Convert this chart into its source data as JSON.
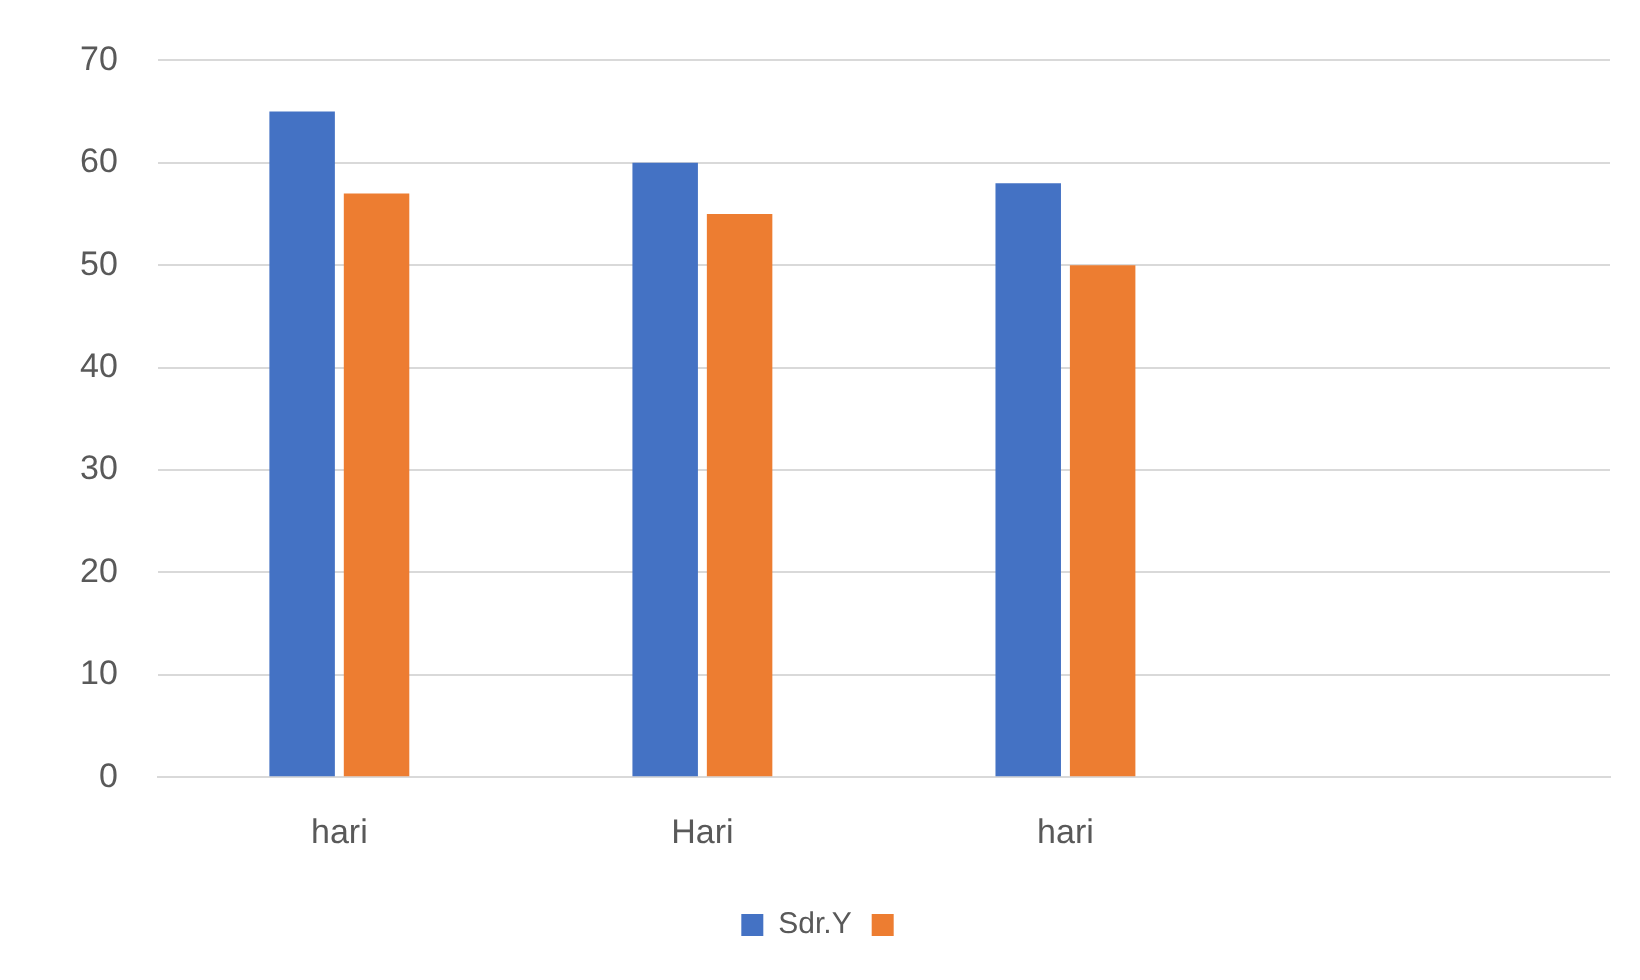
{
  "chart_data": {
    "type": "bar",
    "categories": [
      "hari",
      "Hari",
      "hari",
      null
    ],
    "series": [
      {
        "name": "Sdr.Y",
        "color": "#4472c4",
        "values": [
          65,
          60,
          58,
          null
        ]
      },
      {
        "color": "#ed7d31",
        "values": [
          57,
          55,
          50,
          null
        ]
      }
    ],
    "ylim": [
      0,
      70
    ],
    "yticks": [
      0,
      10,
      20,
      30,
      40,
      50,
      60,
      70
    ],
    "grid": "y",
    "legend": "bottom"
  }
}
